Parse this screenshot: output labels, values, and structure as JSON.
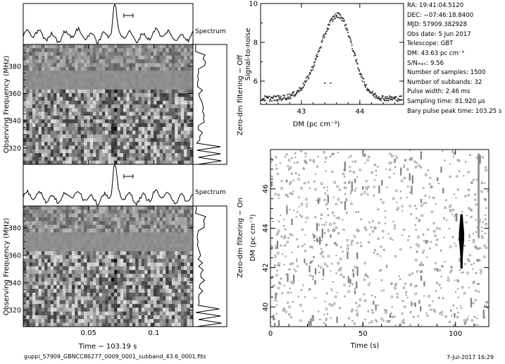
{
  "info": {
    "ra": "RA: 19:41:04.5120",
    "dec": "DEC: −07:46:18.8400",
    "mjd": "MJD: 57909.382928",
    "obs_date": "Obs date: 5 Jun 2017",
    "telescope": "Telescope: GBT",
    "dm": "DM: 43.63 pc cm⁻³",
    "snr": "S/Nₘₐₓ: 9.56",
    "n_samples": "Number of samples: 1500",
    "n_subbands": "Number of subbands: 32",
    "pulse_width": "Pulse width: 2.46 ms",
    "sampling_time": "Sampling time: 81.920 µs",
    "bary_peak": "Bary pulse peak time: 103.25 s"
  },
  "footer": {
    "filename": "guppi_57909_GBNCC86277_0009_0001_subband_43.6_0001.fits",
    "date": "7-Jul-2017 16:29"
  },
  "colors": {
    "ink": "#000000",
    "grey_marker": "#7f7f7f",
    "waterfall_bg": "#8c8c8c"
  },
  "chart_data": [
    {
      "type": "heatmap",
      "panel": "top waterfall (zero-dm filtering off)",
      "xlabel": "",
      "ylabel": "Observing Frequency (MHz)",
      "yticks": [
        320,
        340,
        360,
        380
      ],
      "ylim": [
        308,
        396
      ],
      "spectrum_label": "Spectrum"
    },
    {
      "type": "heatmap",
      "panel": "bottom waterfall (zero-dm filtering on)",
      "xlabel": "Time − 103.19 s",
      "xticks": [
        "0.05",
        "0.1"
      ],
      "xtick_values": [
        0.05,
        0.1
      ],
      "xlim": [
        0.0,
        0.13
      ],
      "ylabel": "Observing Frequency (MHz)",
      "yticks": [
        320,
        340,
        360,
        380
      ],
      "ylim": [
        308,
        396
      ],
      "spectrum_label": "Spectrum",
      "pulse_time": 0.07
    },
    {
      "type": "scatter",
      "panel": "SNR vs DM",
      "side_label": "Zero-dm filtering − Off",
      "xlabel": "DM (pc cm⁻³)",
      "ylabel": "Signal-to-noise",
      "xlim": [
        42.3,
        44.75
      ],
      "ylim": [
        4.8,
        10
      ],
      "xticks": [
        43,
        44
      ],
      "yticks": [
        6,
        8,
        10
      ],
      "peak_dm": 43.63,
      "peak_snr": 9.4,
      "base_snr": 5.1,
      "outliers": [
        {
          "x": 43.4,
          "y": 5.9
        },
        {
          "x": 43.5,
          "y": 5.9
        }
      ]
    },
    {
      "type": "scatter",
      "panel": "DM vs Time",
      "side_label": "Zero-dm filtering − On",
      "xlabel": "Time (s)",
      "ylabel": "DM (pc cm⁻³)",
      "xlim": [
        0,
        118
      ],
      "ylim": [
        39,
        48
      ],
      "xticks": [
        0,
        50,
        100
      ],
      "yticks": [
        40,
        42,
        44,
        46
      ],
      "pulse": {
        "time": 103.25,
        "dm_min": 42.0,
        "dm_max": 44.7
      }
    }
  ]
}
